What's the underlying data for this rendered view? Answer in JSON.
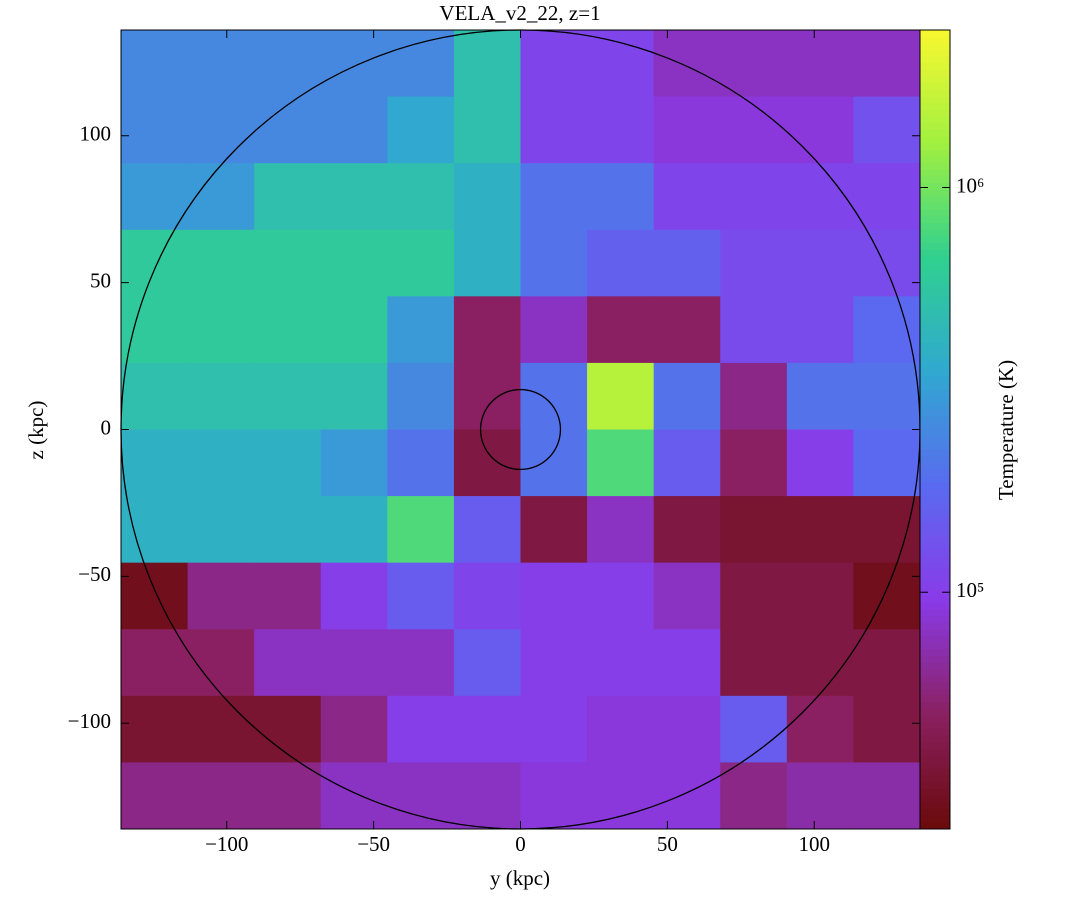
{
  "chart_data": {
    "type": "heatmap",
    "title": "VELA_v2_22, z=1",
    "x_label": "y  (kpc)",
    "y_label": "z  (kpc)",
    "colorbar_label": "Temperature  (K)",
    "xlim": [
      -136,
      136
    ],
    "ylim": [
      -136,
      136
    ],
    "xticks": [
      {
        "value": -100,
        "label": "−100"
      },
      {
        "value": -50,
        "label": "−50"
      },
      0,
      50,
      100
    ],
    "yticks": [
      {
        "value": -100,
        "label": "−100"
      },
      {
        "value": -50,
        "label": "−50"
      },
      0,
      50,
      100
    ],
    "clim": [
      26000,
      2450000
    ],
    "color_scale": "log",
    "cticks": [
      {
        "value": 100000,
        "label": "10⁵"
      },
      {
        "value": 1000000,
        "label": "10⁶"
      }
    ],
    "colormap": [
      "#6a0a0a",
      "#8a2060",
      "#8a3ae8",
      "#5a6af0",
      "#30a8d0",
      "#30d090",
      "#a0f040",
      "#f8f830"
    ],
    "circle_radii": [
      136,
      13.6
    ],
    "circle_color": "#000000",
    "values": [
      [
        250000,
        250000,
        250000,
        250000,
        250000,
        500000,
        110000,
        110000,
        80000,
        80000,
        80000,
        80000
      ],
      [
        250000,
        250000,
        250000,
        250000,
        350000,
        500000,
        110000,
        110000,
        90000,
        90000,
        90000,
        130000
      ],
      [
        300000,
        300000,
        500000,
        500000,
        500000,
        400000,
        200000,
        200000,
        110000,
        110000,
        110000,
        110000
      ],
      [
        600000,
        600000,
        600000,
        600000,
        600000,
        400000,
        200000,
        160000,
        160000,
        120000,
        120000,
        120000
      ],
      [
        600000,
        600000,
        600000,
        600000,
        300000,
        50000,
        80000,
        50000,
        50000,
        120000,
        120000,
        180000
      ],
      [
        500000,
        500000,
        500000,
        500000,
        250000,
        50000,
        200000,
        1500000,
        200000,
        60000,
        200000,
        200000
      ],
      [
        400000,
        400000,
        400000,
        300000,
        200000,
        40000,
        200000,
        800000,
        150000,
        50000,
        100000,
        180000
      ],
      [
        400000,
        400000,
        400000,
        400000,
        800000,
        150000,
        40000,
        80000,
        40000,
        35000,
        35000,
        35000
      ],
      [
        30000,
        60000,
        60000,
        100000,
        150000,
        110000,
        100000,
        100000,
        80000,
        40000,
        40000,
        30000
      ],
      [
        50000,
        50000,
        80000,
        80000,
        80000,
        150000,
        100000,
        100000,
        100000,
        40000,
        40000,
        40000
      ],
      [
        35000,
        35000,
        35000,
        60000,
        100000,
        100000,
        100000,
        90000,
        90000,
        150000,
        50000,
        40000
      ],
      [
        60000,
        60000,
        60000,
        80000,
        80000,
        80000,
        90000,
        90000,
        90000,
        60000,
        70000,
        70000
      ]
    ]
  }
}
